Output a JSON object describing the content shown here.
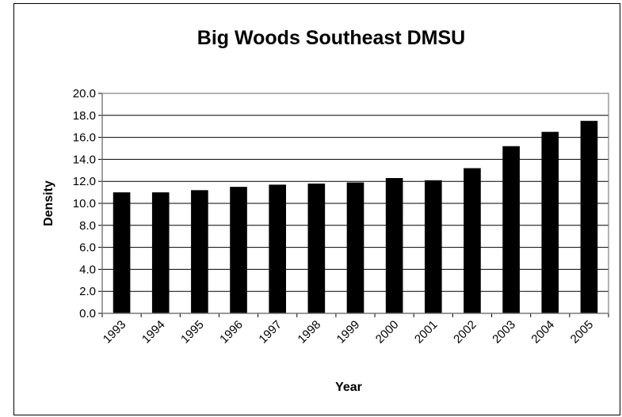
{
  "chart_data": {
    "type": "bar",
    "title": "Big Woods Southeast DMSU",
    "xlabel": "Year",
    "ylabel": "Density",
    "categories": [
      "1993",
      "1994",
      "1995",
      "1996",
      "1997",
      "1998",
      "1999",
      "2000",
      "2001",
      "2002",
      "2003",
      "2004",
      "2005"
    ],
    "values": [
      11.0,
      11.0,
      11.2,
      11.5,
      11.7,
      11.8,
      11.9,
      12.3,
      12.1,
      13.2,
      15.2,
      16.5,
      17.5
    ],
    "ylim": [
      0,
      20
    ],
    "yticks": [
      "0.0",
      "2.0",
      "4.0",
      "6.0",
      "8.0",
      "10.0",
      "12.0",
      "14.0",
      "16.0",
      "18.0",
      "20.0"
    ],
    "grid": true,
    "legend": "none",
    "colors": {
      "bar": "#000000",
      "grid": "#000000",
      "axis": "#808080"
    }
  }
}
